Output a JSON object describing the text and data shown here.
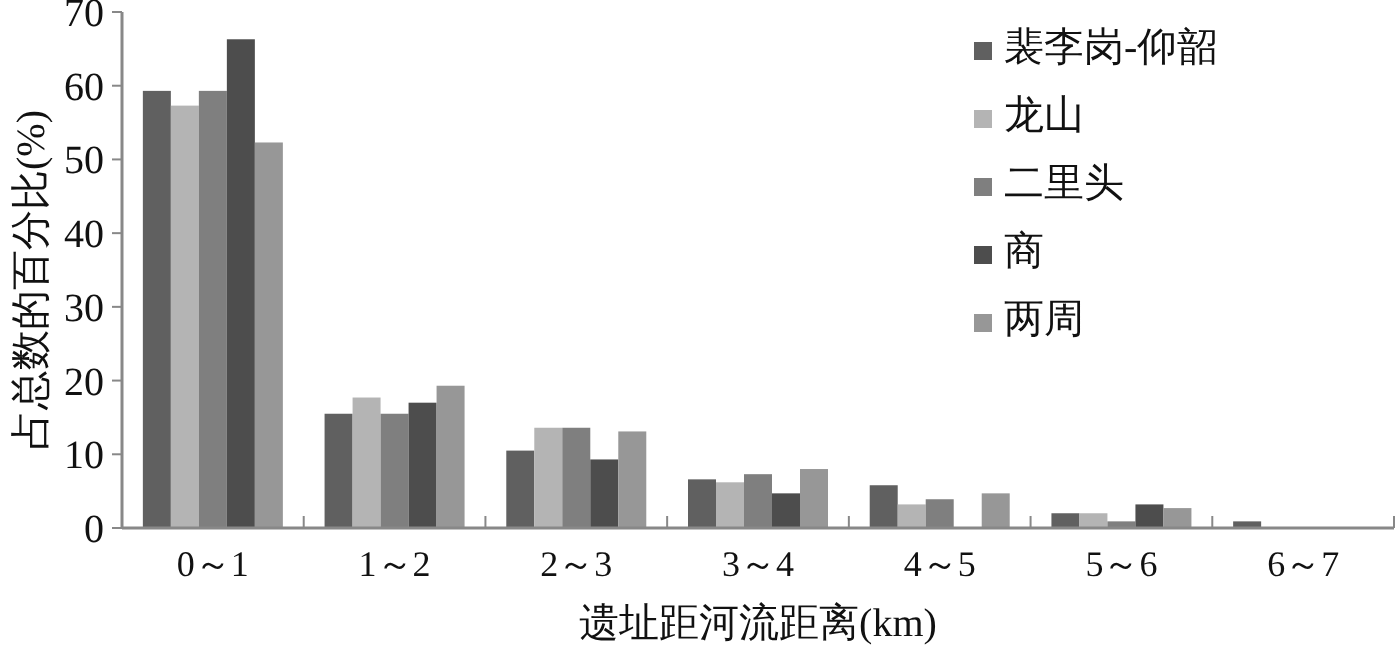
{
  "chart_data": {
    "type": "bar",
    "xlabel": "遗址距河流距离(km)",
    "ylabel": "占总数的百分比(%)",
    "categories": [
      "0～1",
      "1～2",
      "2～3",
      "3～4",
      "4～5",
      "5～6",
      "6～7"
    ],
    "series": [
      {
        "name": "裴李岗-仰韶",
        "color": "#606060",
        "values": [
          59.3,
          15.5,
          10.5,
          6.6,
          5.8,
          2.0,
          0.9
        ]
      },
      {
        "name": "龙山",
        "color": "#b4b4b4",
        "values": [
          57.3,
          17.7,
          13.6,
          6.2,
          3.2,
          2.0,
          null
        ]
      },
      {
        "name": "二里头",
        "color": "#7f7f7f",
        "values": [
          59.3,
          15.5,
          13.6,
          7.3,
          3.9,
          0.9,
          null
        ]
      },
      {
        "name": "商",
        "color": "#4d4d4d",
        "values": [
          66.3,
          17.0,
          9.3,
          4.7,
          null,
          3.2,
          null
        ]
      },
      {
        "name": "两周",
        "color": "#979797",
        "values": [
          52.3,
          19.3,
          13.1,
          8.0,
          4.7,
          2.7,
          null
        ]
      }
    ],
    "ylim": [
      0,
      70
    ],
    "yticks": [
      0,
      10,
      20,
      30,
      40,
      50,
      60,
      70
    ],
    "grid": false,
    "legend": "top right"
  }
}
